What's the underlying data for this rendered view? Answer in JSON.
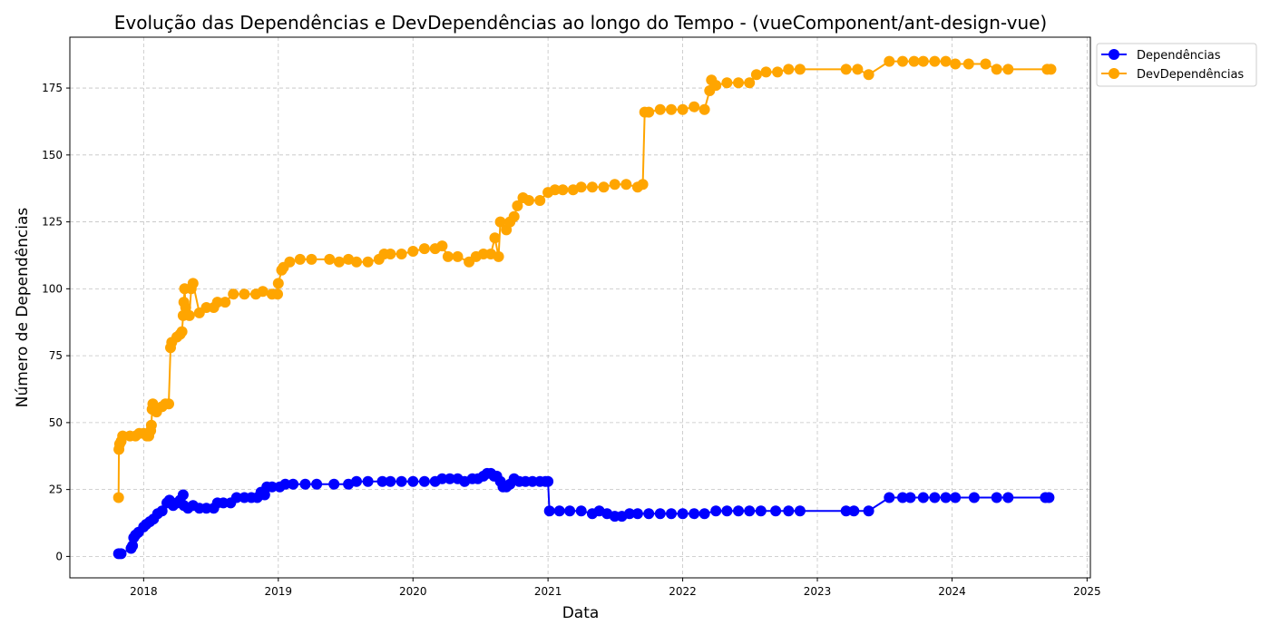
{
  "chart_data": {
    "type": "line",
    "title": "Evolução das Dependências e DevDependências ao longo do Tempo - (vueComponent/ant-design-vue)",
    "xlabel": "Data",
    "ylabel": "Número de Dependências",
    "xlim": [
      "2017-06-15",
      "2025-01-10"
    ],
    "ylim": [
      -8,
      194
    ],
    "x_ticks": [
      "2018",
      "2019",
      "2020",
      "2021",
      "2022",
      "2023",
      "2024",
      "2025"
    ],
    "y_ticks": [
      0,
      25,
      50,
      75,
      100,
      125,
      150,
      175
    ],
    "grid": true,
    "legend_position": "upper right, outside plot",
    "series": [
      {
        "name": "Dependências",
        "color": "#0000ff",
        "marker": "circle",
        "points": [
          [
            "2017-10-25",
            1
          ],
          [
            "2017-11-01",
            1
          ],
          [
            "2017-11-28",
            3
          ],
          [
            "2017-12-02",
            4
          ],
          [
            "2017-12-05",
            7
          ],
          [
            "2017-12-10",
            8
          ],
          [
            "2017-12-18",
            9
          ],
          [
            "2018-01-01",
            11
          ],
          [
            "2018-01-08",
            12
          ],
          [
            "2018-01-18",
            13
          ],
          [
            "2018-01-28",
            14
          ],
          [
            "2018-02-08",
            16
          ],
          [
            "2018-02-20",
            17
          ],
          [
            "2018-03-05",
            20
          ],
          [
            "2018-03-12",
            21
          ],
          [
            "2018-03-22",
            19
          ],
          [
            "2018-04-01",
            20
          ],
          [
            "2018-04-10",
            21
          ],
          [
            "2018-04-18",
            23
          ],
          [
            "2018-04-20",
            19
          ],
          [
            "2018-05-01",
            18
          ],
          [
            "2018-05-15",
            19
          ],
          [
            "2018-06-01",
            18
          ],
          [
            "2018-06-20",
            18
          ],
          [
            "2018-07-10",
            18
          ],
          [
            "2018-07-20",
            20
          ],
          [
            "2018-08-05",
            20
          ],
          [
            "2018-08-25",
            20
          ],
          [
            "2018-09-10",
            22
          ],
          [
            "2018-10-01",
            22
          ],
          [
            "2018-10-20",
            22
          ],
          [
            "2018-11-05",
            22
          ],
          [
            "2018-11-15",
            24
          ],
          [
            "2018-11-25",
            23
          ],
          [
            "2018-12-01",
            26
          ],
          [
            "2018-12-15",
            26
          ],
          [
            "2019-01-05",
            26
          ],
          [
            "2019-01-20",
            27
          ],
          [
            "2019-02-10",
            27
          ],
          [
            "2019-03-15",
            27
          ],
          [
            "2019-04-15",
            27
          ],
          [
            "2019-06-01",
            27
          ],
          [
            "2019-07-10",
            27
          ],
          [
            "2019-08-01",
            28
          ],
          [
            "2019-09-01",
            28
          ],
          [
            "2019-10-10",
            28
          ],
          [
            "2019-11-01",
            28
          ],
          [
            "2019-12-01",
            28
          ],
          [
            "2020-01-01",
            28
          ],
          [
            "2020-02-01",
            28
          ],
          [
            "2020-03-01",
            28
          ],
          [
            "2020-03-20",
            29
          ],
          [
            "2020-04-10",
            29
          ],
          [
            "2020-05-01",
            29
          ],
          [
            "2020-05-20",
            28
          ],
          [
            "2020-06-10",
            29
          ],
          [
            "2020-06-25",
            29
          ],
          [
            "2020-07-10",
            30
          ],
          [
            "2020-07-20",
            31
          ],
          [
            "2020-07-30",
            31
          ],
          [
            "2020-08-08",
            30
          ],
          [
            "2020-08-15",
            30
          ],
          [
            "2020-08-25",
            28
          ],
          [
            "2020-09-01",
            26
          ],
          [
            "2020-09-10",
            26
          ],
          [
            "2020-09-20",
            27
          ],
          [
            "2020-10-01",
            29
          ],
          [
            "2020-10-15",
            28
          ],
          [
            "2020-11-01",
            28
          ],
          [
            "2020-11-20",
            28
          ],
          [
            "2020-12-10",
            28
          ],
          [
            "2020-12-25",
            28
          ],
          [
            "2021-01-01",
            28
          ],
          [
            "2021-01-05",
            17
          ],
          [
            "2021-02-01",
            17
          ],
          [
            "2021-03-01",
            17
          ],
          [
            "2021-04-01",
            17
          ],
          [
            "2021-05-01",
            16
          ],
          [
            "2021-05-20",
            17
          ],
          [
            "2021-06-10",
            16
          ],
          [
            "2021-07-01",
            15
          ],
          [
            "2021-07-20",
            15
          ],
          [
            "2021-08-10",
            16
          ],
          [
            "2021-09-01",
            16
          ],
          [
            "2021-10-01",
            16
          ],
          [
            "2021-11-01",
            16
          ],
          [
            "2021-12-01",
            16
          ],
          [
            "2022-01-01",
            16
          ],
          [
            "2022-02-01",
            16
          ],
          [
            "2022-03-01",
            16
          ],
          [
            "2022-04-01",
            17
          ],
          [
            "2022-05-01",
            17
          ],
          [
            "2022-06-01",
            17
          ],
          [
            "2022-07-01",
            17
          ],
          [
            "2022-08-01",
            17
          ],
          [
            "2022-09-10",
            17
          ],
          [
            "2022-10-15",
            17
          ],
          [
            "2022-11-15",
            17
          ],
          [
            "2023-03-20",
            17
          ],
          [
            "2023-04-10",
            17
          ],
          [
            "2023-05-20",
            17
          ],
          [
            "2023-07-15",
            22
          ],
          [
            "2023-08-20",
            22
          ],
          [
            "2023-09-10",
            22
          ],
          [
            "2023-10-15",
            22
          ],
          [
            "2023-11-15",
            22
          ],
          [
            "2023-12-15",
            22
          ],
          [
            "2024-01-10",
            22
          ],
          [
            "2024-03-01",
            22
          ],
          [
            "2024-05-01",
            22
          ],
          [
            "2024-06-01",
            22
          ],
          [
            "2024-09-10",
            22
          ],
          [
            "2024-09-20",
            22
          ]
        ]
      },
      {
        "name": "DevDependências",
        "color": "#ffa500",
        "marker": "circle",
        "points": [
          [
            "2017-10-25",
            22
          ],
          [
            "2017-10-26",
            40
          ],
          [
            "2017-10-28",
            42
          ],
          [
            "2017-11-01",
            43
          ],
          [
            "2017-11-05",
            45
          ],
          [
            "2017-11-25",
            45
          ],
          [
            "2017-12-10",
            45
          ],
          [
            "2017-12-20",
            46
          ],
          [
            "2018-01-01",
            46
          ],
          [
            "2018-01-10",
            45
          ],
          [
            "2018-01-15",
            45
          ],
          [
            "2018-01-20",
            47
          ],
          [
            "2018-01-22",
            49
          ],
          [
            "2018-01-24",
            55
          ],
          [
            "2018-01-26",
            57
          ],
          [
            "2018-02-05",
            54
          ],
          [
            "2018-02-20",
            56
          ],
          [
            "2018-03-01",
            57
          ],
          [
            "2018-03-10",
            57
          ],
          [
            "2018-03-15",
            78
          ],
          [
            "2018-03-18",
            80
          ],
          [
            "2018-04-01",
            82
          ],
          [
            "2018-04-10",
            83
          ],
          [
            "2018-04-15",
            84
          ],
          [
            "2018-04-18",
            90
          ],
          [
            "2018-04-20",
            95
          ],
          [
            "2018-04-22",
            100
          ],
          [
            "2018-04-25",
            93
          ],
          [
            "2018-05-05",
            90
          ],
          [
            "2018-05-10",
            100
          ],
          [
            "2018-05-15",
            102
          ],
          [
            "2018-06-01",
            91
          ],
          [
            "2018-06-20",
            93
          ],
          [
            "2018-07-10",
            93
          ],
          [
            "2018-07-20",
            95
          ],
          [
            "2018-08-10",
            95
          ],
          [
            "2018-09-01",
            98
          ],
          [
            "2018-10-01",
            98
          ],
          [
            "2018-11-01",
            98
          ],
          [
            "2018-11-20",
            99
          ],
          [
            "2018-12-15",
            98
          ],
          [
            "2018-12-30",
            98
          ],
          [
            "2019-01-01",
            102
          ],
          [
            "2019-01-10",
            107
          ],
          [
            "2019-01-15",
            108
          ],
          [
            "2019-02-01",
            110
          ],
          [
            "2019-03-01",
            111
          ],
          [
            "2019-04-01",
            111
          ],
          [
            "2019-05-20",
            111
          ],
          [
            "2019-06-15",
            110
          ],
          [
            "2019-07-10",
            111
          ],
          [
            "2019-08-01",
            110
          ],
          [
            "2019-09-01",
            110
          ],
          [
            "2019-10-01",
            111
          ],
          [
            "2019-10-15",
            113
          ],
          [
            "2019-11-01",
            113
          ],
          [
            "2019-12-01",
            113
          ],
          [
            "2020-01-01",
            114
          ],
          [
            "2020-02-01",
            115
          ],
          [
            "2020-03-01",
            115
          ],
          [
            "2020-03-20",
            116
          ],
          [
            "2020-04-05",
            112
          ],
          [
            "2020-05-01",
            112
          ],
          [
            "2020-06-01",
            110
          ],
          [
            "2020-06-20",
            112
          ],
          [
            "2020-07-10",
            113
          ],
          [
            "2020-07-30",
            113
          ],
          [
            "2020-08-10",
            119
          ],
          [
            "2020-08-20",
            112
          ],
          [
            "2020-08-25",
            125
          ],
          [
            "2020-09-10",
            122
          ],
          [
            "2020-09-20",
            125
          ],
          [
            "2020-10-01",
            127
          ],
          [
            "2020-10-10",
            131
          ],
          [
            "2020-10-25",
            134
          ],
          [
            "2020-11-10",
            133
          ],
          [
            "2020-12-10",
            133
          ],
          [
            "2021-01-01",
            136
          ],
          [
            "2021-01-20",
            137
          ],
          [
            "2021-02-10",
            137
          ],
          [
            "2021-03-10",
            137
          ],
          [
            "2021-04-01",
            138
          ],
          [
            "2021-05-01",
            138
          ],
          [
            "2021-06-01",
            138
          ],
          [
            "2021-07-01",
            139
          ],
          [
            "2021-08-01",
            139
          ],
          [
            "2021-09-01",
            138
          ],
          [
            "2021-09-15",
            139
          ],
          [
            "2021-09-20",
            166
          ],
          [
            "2021-10-01",
            166
          ],
          [
            "2021-11-01",
            167
          ],
          [
            "2021-12-01",
            167
          ],
          [
            "2022-01-01",
            167
          ],
          [
            "2022-02-01",
            168
          ],
          [
            "2022-03-01",
            167
          ],
          [
            "2022-03-15",
            174
          ],
          [
            "2022-03-20",
            178
          ],
          [
            "2022-04-01",
            176
          ],
          [
            "2022-05-01",
            177
          ],
          [
            "2022-06-01",
            177
          ],
          [
            "2022-07-01",
            177
          ],
          [
            "2022-07-20",
            180
          ],
          [
            "2022-08-15",
            181
          ],
          [
            "2022-09-15",
            181
          ],
          [
            "2022-10-15",
            182
          ],
          [
            "2022-11-15",
            182
          ],
          [
            "2023-03-20",
            182
          ],
          [
            "2023-04-20",
            182
          ],
          [
            "2023-05-20",
            180
          ],
          [
            "2023-07-15",
            185
          ],
          [
            "2023-08-20",
            185
          ],
          [
            "2023-09-20",
            185
          ],
          [
            "2023-10-15",
            185
          ],
          [
            "2023-11-15",
            185
          ],
          [
            "2023-12-15",
            185
          ],
          [
            "2024-01-10",
            184
          ],
          [
            "2024-02-15",
            184
          ],
          [
            "2024-04-01",
            184
          ],
          [
            "2024-05-01",
            182
          ],
          [
            "2024-06-01",
            182
          ],
          [
            "2024-09-15",
            182
          ],
          [
            "2024-09-25",
            182
          ]
        ]
      }
    ]
  }
}
